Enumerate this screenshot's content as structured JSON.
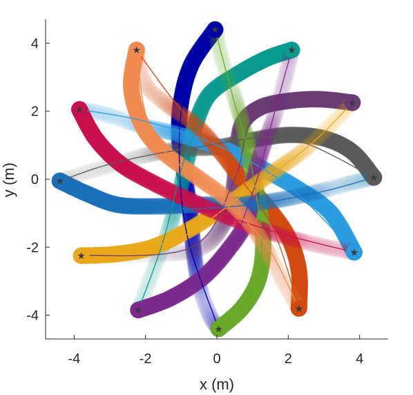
{
  "chart_data": {
    "type": "line",
    "title": "",
    "xlabel": "x (m)",
    "ylabel": "y (m)",
    "xlim": [
      -4.8,
      4.8
    ],
    "ylim": [
      -4.7,
      4.7
    ],
    "xticks": [
      -4,
      -2,
      0,
      2,
      4
    ],
    "yticks": [
      -4,
      -2,
      0,
      2,
      4
    ],
    "xtick_labels": [
      "-4",
      "-2",
      "0",
      "2",
      "4"
    ],
    "ytick_labels": [
      "-4",
      "-2",
      "0",
      "2",
      "4"
    ],
    "grid": false,
    "legend": "none",
    "series": [
      {
        "color": "#0000a8",
        "start": [
          -0.05,
          4.4
        ],
        "goal": [
          0.05,
          -4.4
        ],
        "path": [
          [
            -0.05,
            4.4
          ],
          [
            -0.7,
            3.4
          ],
          [
            -1.0,
            2.3
          ],
          [
            -1.05,
            1.2
          ],
          [
            -0.9,
            0.1
          ],
          [
            -0.75,
            -1.0
          ],
          [
            -0.65,
            -2.1
          ],
          [
            -0.5,
            -3.1
          ],
          [
            -0.2,
            -4.0
          ],
          [
            0.05,
            -4.4
          ]
        ],
        "plan": [
          [
            -0.05,
            4.4
          ],
          [
            -0.9,
            2.5
          ],
          [
            -1.05,
            0.5
          ],
          [
            -0.8,
            -1.8
          ],
          [
            0.05,
            -4.4
          ]
        ]
      },
      {
        "color": "#0a9a90",
        "start": [
          2.1,
          3.8
        ],
        "goal": [
          -2.2,
          -3.85
        ],
        "path": [
          [
            2.1,
            3.8
          ],
          [
            1.4,
            3.55
          ],
          [
            0.6,
            3.1
          ],
          [
            -0.2,
            2.5
          ],
          [
            -0.6,
            1.6
          ],
          [
            -0.8,
            0.7
          ],
          [
            -1.05,
            -0.4
          ],
          [
            -1.35,
            -1.5
          ],
          [
            -1.75,
            -2.6
          ],
          [
            -2.2,
            -3.85
          ]
        ],
        "plan": [
          [
            2.1,
            3.8
          ],
          [
            0.3,
            2.9
          ],
          [
            -0.8,
            0.9
          ],
          [
            -1.5,
            -1.8
          ],
          [
            -2.2,
            -3.85
          ]
        ]
      },
      {
        "color": "#6a3c73",
        "start": [
          3.8,
          2.25
        ],
        "goal": [
          -3.8,
          -2.25
        ],
        "path": [
          [
            3.8,
            2.25
          ],
          [
            2.9,
            2.35
          ],
          [
            2.0,
            2.3
          ],
          [
            1.2,
            2.1
          ],
          [
            0.7,
            1.6
          ],
          [
            0.55,
            0.6
          ],
          [
            0.45,
            -0.4
          ],
          [
            0.2,
            -1.3
          ],
          [
            -0.4,
            -2.0
          ],
          [
            -1.5,
            -2.2
          ],
          [
            -3.8,
            -2.25
          ]
        ],
        "plan": [
          [
            3.8,
            2.25
          ],
          [
            1.2,
            2.0
          ],
          [
            0.5,
            0.0
          ],
          [
            -0.7,
            -2.0
          ],
          [
            -3.8,
            -2.25
          ]
        ]
      },
      {
        "color": "#5a5a5a",
        "start": [
          4.4,
          0.05
        ],
        "goal": [
          -4.4,
          -0.05
        ],
        "path": [
          [
            4.4,
            0.05
          ],
          [
            3.8,
            0.8
          ],
          [
            3.0,
            1.2
          ],
          [
            2.0,
            1.3
          ],
          [
            1.0,
            1.15
          ],
          [
            0.1,
            0.95
          ],
          [
            -0.8,
            0.9
          ],
          [
            -1.8,
            0.75
          ],
          [
            -3.0,
            0.4
          ],
          [
            -4.4,
            -0.05
          ]
        ],
        "plan": [
          [
            4.4,
            0.05
          ],
          [
            2.0,
            1.2
          ],
          [
            -0.5,
            0.95
          ],
          [
            -2.8,
            0.5
          ],
          [
            -4.4,
            -0.05
          ]
        ]
      },
      {
        "color": "#2a9be0",
        "start": [
          3.85,
          -2.15
        ],
        "goal": [
          -3.85,
          2.05
        ],
        "path": [
          [
            3.85,
            -2.15
          ],
          [
            3.2,
            -1.0
          ],
          [
            2.3,
            -0.3
          ],
          [
            1.3,
            0.3
          ],
          [
            0.4,
            0.8
          ],
          [
            -0.4,
            1.1
          ],
          [
            -1.2,
            1.35
          ],
          [
            -2.2,
            1.6
          ],
          [
            -3.1,
            1.9
          ],
          [
            -3.85,
            2.05
          ]
        ],
        "plan": [
          [
            3.85,
            -2.15
          ],
          [
            2.0,
            -0.2
          ],
          [
            0.0,
            1.0
          ],
          [
            -2.0,
            1.7
          ],
          [
            -3.85,
            2.05
          ]
        ]
      },
      {
        "color": "#d24a10",
        "start": [
          2.3,
          -3.8
        ],
        "goal": [
          -2.25,
          3.8
        ],
        "path": [
          [
            2.3,
            -3.8
          ],
          [
            2.3,
            -2.7
          ],
          [
            2.0,
            -1.7
          ],
          [
            1.4,
            -0.8
          ],
          [
            0.7,
            0.0
          ],
          [
            0.1,
            0.8
          ],
          [
            -0.6,
            1.6
          ],
          [
            -1.4,
            2.2
          ],
          [
            -2.0,
            2.8
          ],
          [
            -2.25,
            3.8
          ]
        ],
        "plan": [
          [
            2.3,
            -3.8
          ],
          [
            1.5,
            -1.3
          ],
          [
            0.2,
            0.6
          ],
          [
            -1.2,
            2.3
          ],
          [
            -2.25,
            3.8
          ]
        ]
      },
      {
        "color": "#6aa82a",
        "start": [
          0.05,
          -4.4
        ],
        "goal": [
          -0.05,
          4.4
        ],
        "path": [
          [
            0.05,
            -4.4
          ],
          [
            0.7,
            -3.8
          ],
          [
            1.15,
            -3.0
          ],
          [
            1.3,
            -2.0
          ],
          [
            1.2,
            -0.9
          ],
          [
            1.0,
            0.2
          ],
          [
            0.8,
            1.3
          ],
          [
            0.5,
            2.4
          ],
          [
            0.15,
            3.5
          ],
          [
            -0.05,
            4.4
          ]
        ],
        "plan": [
          [
            0.05,
            -4.4
          ],
          [
            1.2,
            -2.6
          ],
          [
            1.0,
            0.2
          ],
          [
            0.4,
            2.6
          ],
          [
            -0.05,
            4.4
          ]
        ]
      },
      {
        "color": "#7a2a8c",
        "start": [
          -2.2,
          -3.85
        ],
        "goal": [
          2.1,
          3.8
        ],
        "path": [
          [
            -2.2,
            -3.85
          ],
          [
            -1.3,
            -3.5
          ],
          [
            -0.4,
            -2.9
          ],
          [
            0.3,
            -2.1
          ],
          [
            0.85,
            -1.2
          ],
          [
            1.0,
            -0.2
          ],
          [
            1.25,
            0.8
          ],
          [
            1.6,
            1.8
          ],
          [
            1.9,
            2.9
          ],
          [
            2.1,
            3.8
          ]
        ],
        "plan": [
          [
            -2.2,
            -3.85
          ],
          [
            0.0,
            -2.6
          ],
          [
            1.0,
            -0.4
          ],
          [
            1.6,
            1.9
          ],
          [
            2.1,
            3.8
          ]
        ]
      },
      {
        "color": "#e8a81a",
        "start": [
          -3.8,
          -2.25
        ],
        "goal": [
          3.8,
          2.25
        ],
        "path": [
          [
            -3.8,
            -2.25
          ],
          [
            -2.8,
            -2.2
          ],
          [
            -1.8,
            -2.0
          ],
          [
            -0.8,
            -1.5
          ],
          [
            0.1,
            -0.9
          ],
          [
            0.9,
            -0.3
          ],
          [
            1.7,
            0.3
          ],
          [
            2.5,
            0.9
          ],
          [
            3.2,
            1.6
          ],
          [
            3.8,
            2.25
          ]
        ],
        "plan": [
          [
            -3.8,
            -2.25
          ],
          [
            -1.2,
            -1.8
          ],
          [
            0.8,
            -0.4
          ],
          [
            2.6,
            1.0
          ],
          [
            3.8,
            2.25
          ]
        ]
      },
      {
        "color": "#1a6fb8",
        "start": [
          -4.4,
          -0.05
        ],
        "goal": [
          4.4,
          0.05
        ],
        "path": [
          [
            -4.4,
            -0.05
          ],
          [
            -3.7,
            -0.4
          ],
          [
            -2.8,
            -0.75
          ],
          [
            -1.7,
            -0.8
          ],
          [
            -0.5,
            -0.75
          ],
          [
            0.6,
            -0.75
          ],
          [
            1.8,
            -0.6
          ],
          [
            2.9,
            -0.35
          ],
          [
            3.8,
            -0.1
          ],
          [
            4.4,
            0.05
          ]
        ],
        "plan": [
          [
            -4.4,
            -0.05
          ],
          [
            -2.0,
            -0.8
          ],
          [
            0.5,
            -0.8
          ],
          [
            2.8,
            -0.4
          ],
          [
            4.4,
            0.05
          ]
        ]
      },
      {
        "color": "#c8104c",
        "start": [
          -3.85,
          2.05
        ],
        "goal": [
          3.85,
          -2.15
        ],
        "path": [
          [
            -3.85,
            2.05
          ],
          [
            -3.4,
            1.2
          ],
          [
            -2.7,
            0.45
          ],
          [
            -1.8,
            -0.1
          ],
          [
            -0.8,
            -0.6
          ],
          [
            0.3,
            -1.1
          ],
          [
            1.3,
            -1.5
          ],
          [
            2.3,
            -1.8
          ],
          [
            3.1,
            -2.0
          ],
          [
            3.85,
            -2.15
          ]
        ],
        "plan": [
          [
            -3.85,
            2.05
          ],
          [
            -2.5,
            0.2
          ],
          [
            -0.5,
            -0.8
          ],
          [
            1.8,
            -1.6
          ],
          [
            3.85,
            -2.15
          ]
        ]
      },
      {
        "color": "#f08a50",
        "start": [
          -2.25,
          3.8
        ],
        "goal": [
          2.3,
          -3.8
        ],
        "path": [
          [
            -2.25,
            3.8
          ],
          [
            -2.4,
            2.7
          ],
          [
            -2.1,
            1.6
          ],
          [
            -1.5,
            0.8
          ],
          [
            -0.6,
            0.1
          ],
          [
            0.3,
            -0.6
          ],
          [
            1.0,
            -1.4
          ],
          [
            1.5,
            -2.3
          ],
          [
            1.9,
            -3.1
          ],
          [
            2.3,
            -3.8
          ]
        ],
        "plan": [
          [
            -2.25,
            3.8
          ],
          [
            -1.8,
            1.3
          ],
          [
            -0.2,
            -0.3
          ],
          [
            1.3,
            -1.8
          ],
          [
            2.3,
            -3.8
          ]
        ]
      }
    ]
  }
}
